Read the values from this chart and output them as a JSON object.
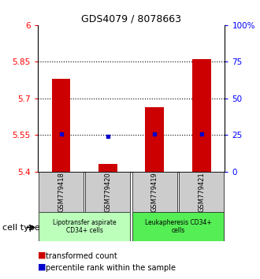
{
  "title": "GDS4079 / 8078663",
  "samples": [
    "GSM779418",
    "GSM779420",
    "GSM779419",
    "GSM779421"
  ],
  "bar_bottoms": [
    5.4,
    5.4,
    5.4,
    5.4
  ],
  "bar_tops": [
    5.78,
    5.43,
    5.665,
    5.86
  ],
  "percentile_values": [
    5.555,
    5.545,
    5.555,
    5.555
  ],
  "ylim_left": [
    5.4,
    6.0
  ],
  "ylim_right": [
    0,
    100
  ],
  "yticks_left": [
    5.4,
    5.55,
    5.7,
    5.85,
    6.0
  ],
  "ytick_labels_left": [
    "5.4",
    "5.55",
    "5.7",
    "5.85",
    "6"
  ],
  "yticks_right": [
    0,
    25,
    50,
    75,
    100
  ],
  "ytick_labels_right": [
    "0",
    "25",
    "50",
    "75",
    "100%"
  ],
  "hlines": [
    5.55,
    5.7,
    5.85
  ],
  "bar_color": "#cc0000",
  "percentile_color": "#0000cc",
  "bar_width": 0.4,
  "group1_label": "Lipotransfer aspirate\nCD34+ cells",
  "group1_color": "#bbffbb",
  "group2_label": "Leukapheresis CD34+\ncells",
  "group2_color": "#55ee55",
  "cell_type_label": "cell type",
  "legend_red_label": "transformed count",
  "legend_blue_label": "percentile rank within the sample",
  "sample_box_color": "#cccccc",
  "title_fontsize": 9,
  "tick_fontsize": 7.5,
  "sample_fontsize": 6,
  "group_fontsize": 5.5,
  "legend_fontsize": 7
}
